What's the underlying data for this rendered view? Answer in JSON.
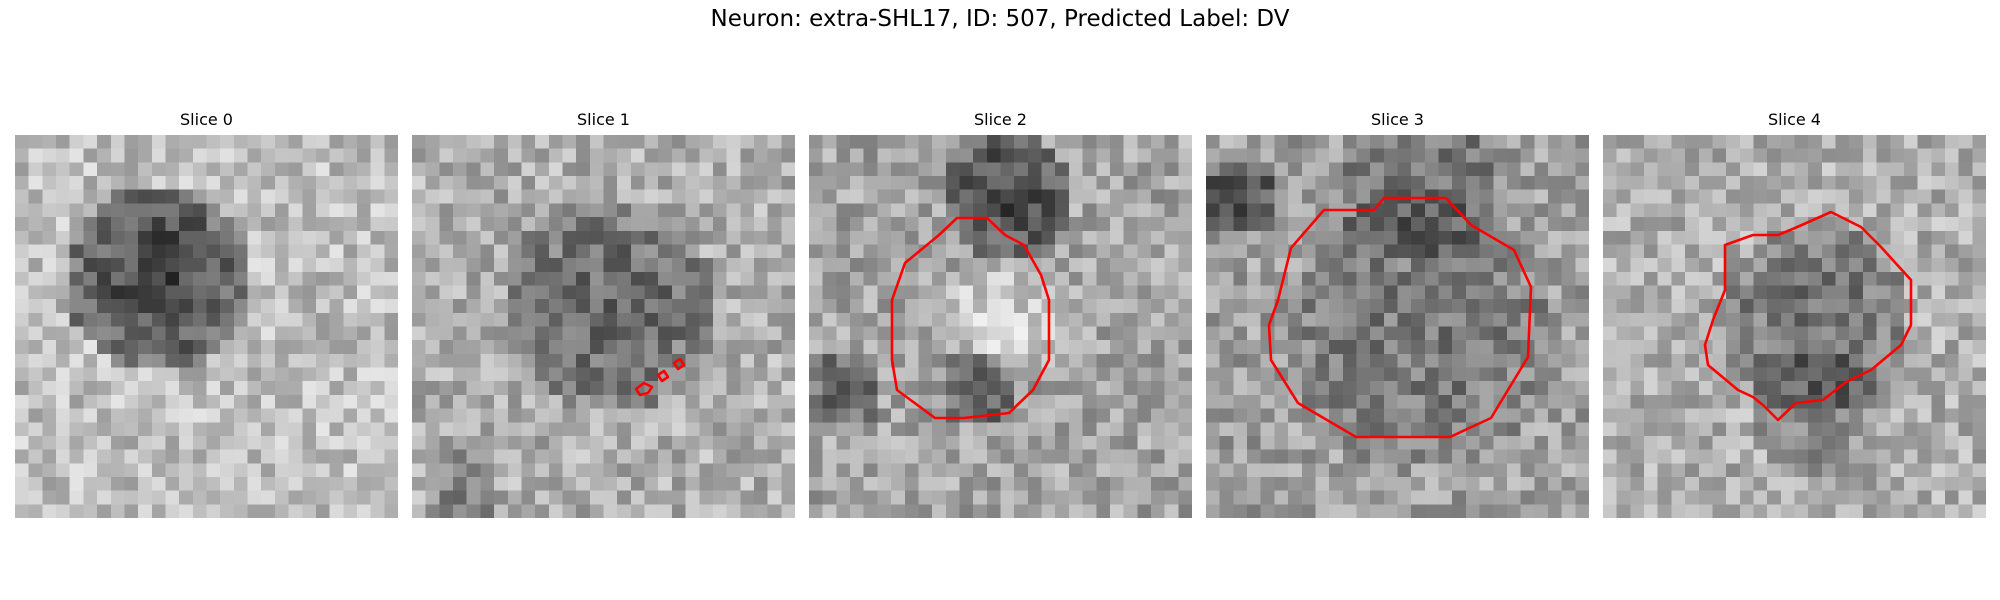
{
  "figure": {
    "title": "Neuron: extra-SHL17, ID: 507, Predicted Label: DV",
    "contour_color": "#ff0000",
    "colormap": "gray",
    "grid_size": 28
  },
  "panels": [
    {
      "title": "Slice 0",
      "has_contour": false
    },
    {
      "title": "Slice 1",
      "has_contour": true
    },
    {
      "title": "Slice 2",
      "has_contour": true
    },
    {
      "title": "Slice 3",
      "has_contour": true
    },
    {
      "title": "Slice 4",
      "has_contour": true
    }
  ]
}
